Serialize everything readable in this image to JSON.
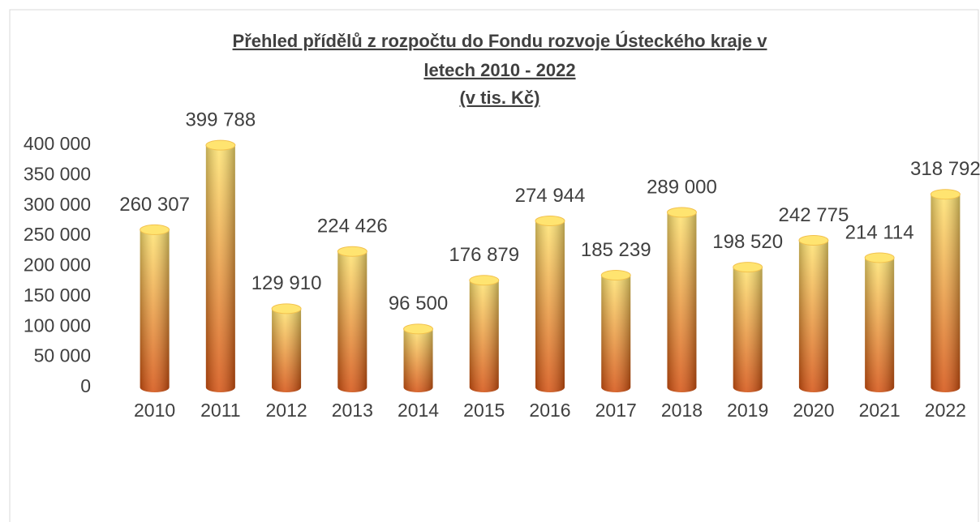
{
  "chart_data": {
    "type": "bar",
    "title": [
      "Přehled přídělů z rozpočtu do Fondu rozvoje Ústeckého kraje v",
      "letech 2010 - 2022",
      "(v tis. Kč)"
    ],
    "categories": [
      "2010",
      "2011",
      "2012",
      "2013",
      "2014",
      "2015",
      "2016",
      "2017",
      "2018",
      "2019",
      "2020",
      "2021",
      "2022"
    ],
    "values": [
      260307,
      399788,
      129910,
      224426,
      96500,
      176879,
      274944,
      185239,
      289000,
      198520,
      242775,
      214114,
      318792
    ],
    "value_labels": [
      "260 307",
      "399 788",
      "129 910",
      "224 426",
      "96 500",
      "176 879",
      "274 944",
      "185 239",
      "289 000",
      "198 520",
      "242 775",
      "214 114",
      "318 792"
    ],
    "color": [
      "#ffe470",
      "#d4500f"
    ],
    "ylim": [
      0,
      400000
    ],
    "yticks": [
      0,
      {
        "value": 50000,
        "label": "50 000"
      },
      {
        "value": 100000,
        "label": "100 000"
      },
      {
        "value": 150000,
        "label": "150 000"
      },
      {
        "value": 200000,
        "label": "200 000"
      },
      {
        "value": 250000,
        "label": "250 000"
      },
      {
        "value": 300000,
        "label": "300 000"
      },
      {
        "value": 350000,
        "label": "350 000"
      },
      {
        "value": 400000,
        "label": "400 000"
      }
    ],
    "grid": false
  }
}
